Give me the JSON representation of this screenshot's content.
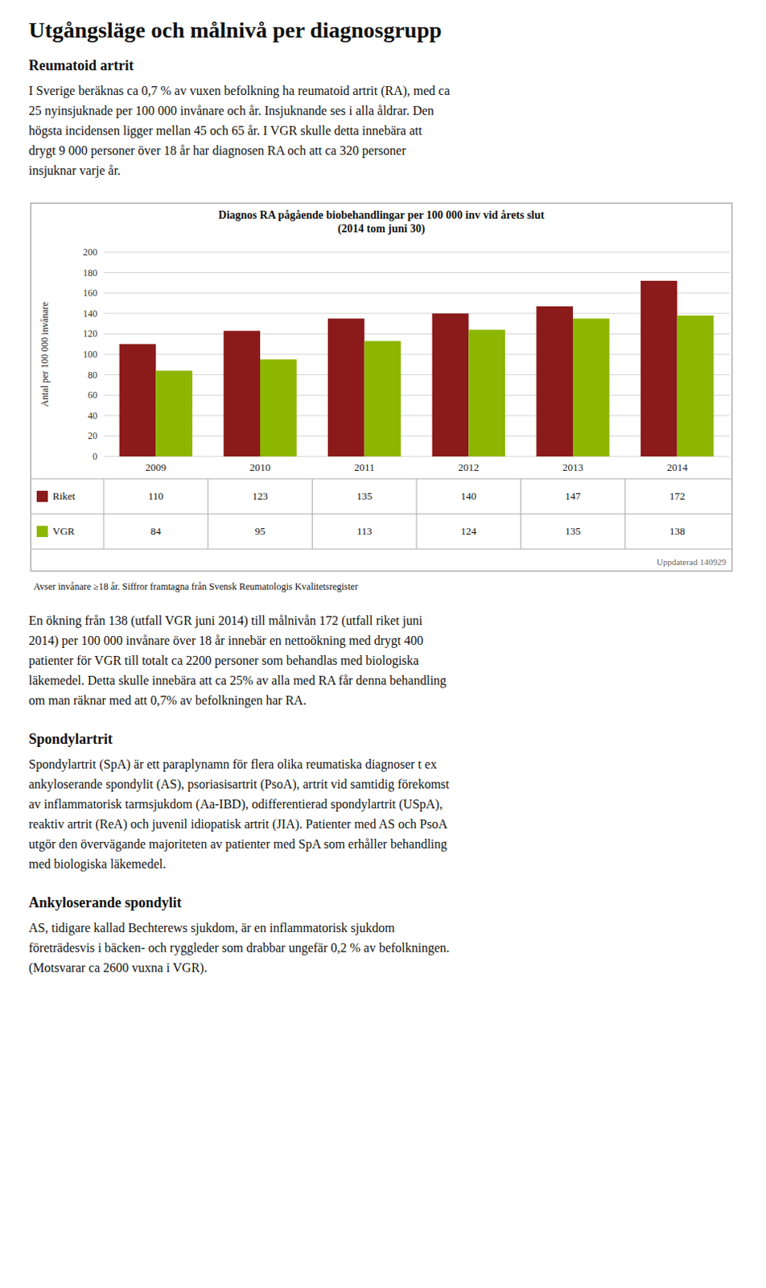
{
  "page_title": "Utgångsläge och målnivå per diagnosgrupp",
  "before_chart": [
    {
      "heading": "Reumatoid artrit",
      "lines": [
        "I Sverige beräknas ca 0,7 % av vuxen befolkning ha reumatoid artrit (RA), med ca",
        "25 nyinsjuknade per 100 000 invånare och år. Insjuknande ses i alla åldrar. Den",
        "högsta incidensen ligger mellan 45 och 65 år. I VGR skulle detta innebära att",
        "drygt 9 000 personer över 18 år har diagnosen RA och att ca 320 personer",
        "insjuknar varje år."
      ]
    }
  ],
  "chart_data": {
    "type": "bar",
    "title": "Diagnos RA pågående biobehandlingar per 100 000 inv vid årets slut\n(2014 tom juni 30)",
    "categories": [
      "2009",
      "2010",
      "2011",
      "2012",
      "2013",
      "2014"
    ],
    "series": [
      {
        "name": "Riket",
        "color": "#8B1A1A",
        "values": [
          110,
          123,
          135,
          140,
          147,
          172
        ]
      },
      {
        "name": "VGR",
        "color": "#8DB600",
        "values": [
          84,
          95,
          113,
          124,
          135,
          138
        ]
      }
    ],
    "ylabel": "Antal per 100 000 invånare",
    "ylim": [
      0,
      200
    ],
    "yticks": [
      0,
      20,
      40,
      60,
      80,
      100,
      120,
      140,
      160,
      180,
      200
    ],
    "grid": true,
    "annotations": [
      "Uppdaterad 140929",
      "Avser invånare ≥18 år. Siffror framtagna från Svensk Reumatologis Kvalitetsregister"
    ]
  },
  "after_chart": [
    {
      "lines": [
        "En ökning från 138 (utfall VGR juni 2014) till målnivån 172 (utfall riket juni",
        "2014) per 100 000 invånare över 18 år innebär en nettoökning med drygt 400",
        "patienter för VGR till totalt ca 2200 personer som behandlas med biologiska",
        "läkemedel. Detta skulle innebära att ca 25% av alla med RA får denna behandling",
        "om man räknar med att 0,7% av befolkningen har RA."
      ]
    },
    {
      "heading": "Spondylartrit",
      "lines": [
        "Spondylartrit (SpA) är ett paraplynamn för flera olika reumatiska diagnoser t ex",
        "ankyloserande spondylit (AS), psoriasisartrit (PsoA), artrit vid samtidig förekomst",
        "av inflammatorisk tarmsjukdom (Aa-IBD), odifferentierad spondylartrit (USpA),",
        "reaktiv artrit (ReA) och juvenil idiopatisk artrit (JIA). Patienter med AS och PsoA",
        "utgör den övervägande majoriteten av patienter med SpA som erhåller behandling",
        "med biologiska läkemedel."
      ]
    },
    {
      "heading": "Ankyloserande spondylit",
      "lines": [
        "AS, tidigare kallad Bechterews sjukdom, är en inflammatorisk sjukdom",
        "företrädesvis i bäcken- och ryggleder som drabbar ungefär 0,2 % av befolkningen.",
        "(Motsvarar ca 2600 vuxna i VGR)."
      ]
    }
  ]
}
